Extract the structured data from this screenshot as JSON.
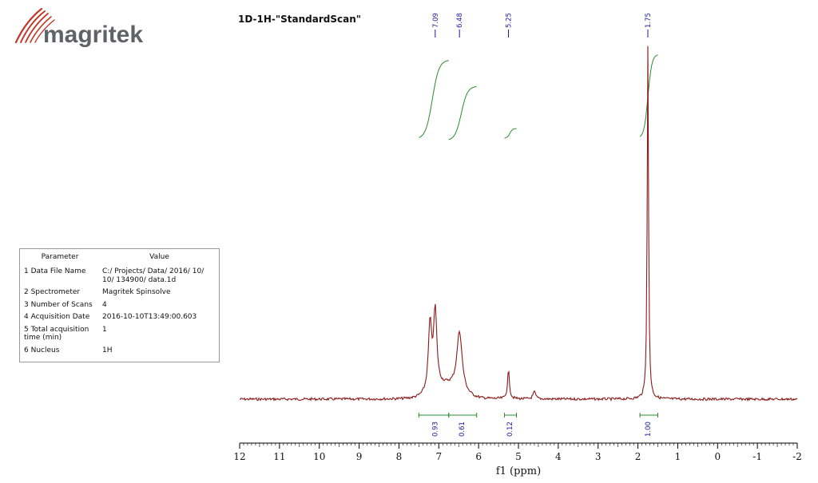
{
  "brand": {
    "logo_text": "magritek"
  },
  "parameters": {
    "header_param": "Parameter",
    "header_value": "Value",
    "rows": [
      {
        "name": "1 Data File Name",
        "value": "C:/ Projects/ Data/ 2016/ 10/ 10/ 134900/ data.1d"
      },
      {
        "name": "2 Spectrometer",
        "value": "Magritek Spinsolve"
      },
      {
        "name": "3 Number of Scans",
        "value": "4"
      },
      {
        "name": "4 Acquisition Date",
        "value": "2016-10-10T13:49:00.603"
      },
      {
        "name": "5 Total acquisition time (min)",
        "value": "1"
      },
      {
        "name": "6 Nucleus",
        "value": "1H"
      }
    ]
  },
  "chart_data": {
    "type": "line",
    "title": "1D-1H-\"StandardScan\"",
    "xlabel": "f1 (ppm)",
    "ylabel": "",
    "xlim": [
      12,
      -2
    ],
    "x_reversed": true,
    "xticks": [
      "12",
      "11",
      "10",
      "9",
      "8",
      "7",
      "6",
      "5",
      "4",
      "3",
      "2",
      "1",
      "0",
      "-1",
      "-2"
    ],
    "grid": false,
    "spectrum_color": "#8b1a1a",
    "integral_color": "#2e8b2e",
    "peak_label_color": "#1a1a9e",
    "peak_labels": [
      {
        "ppm": 7.09,
        "label": "7.09"
      },
      {
        "ppm": 6.48,
        "label": "6.48"
      },
      {
        "ppm": 5.25,
        "label": "5.25"
      },
      {
        "ppm": 1.75,
        "label": "1.75"
      }
    ],
    "peaks_relative_height": [
      {
        "ppm": 7.22,
        "height": 0.19,
        "width": 0.05
      },
      {
        "ppm": 7.09,
        "height": 0.22,
        "width": 0.05
      },
      {
        "ppm": 6.48,
        "height": 0.17,
        "width": 0.08
      },
      {
        "ppm": 5.25,
        "height": 0.08,
        "width": 0.03
      },
      {
        "ppm": 4.6,
        "height": 0.02,
        "width": 0.04
      },
      {
        "ppm": 1.75,
        "height": 1.0,
        "width": 0.02
      }
    ],
    "integrals": [
      {
        "from": 7.5,
        "to": 6.75,
        "value": "0.93",
        "label_ppm": 7.1
      },
      {
        "from": 6.75,
        "to": 6.05,
        "value": "0.61",
        "label_ppm": 6.42
      },
      {
        "from": 5.35,
        "to": 5.05,
        "value": "0.12",
        "label_ppm": 5.22
      },
      {
        "from": 1.95,
        "to": 1.5,
        "value": "1.00",
        "label_ppm": 1.75
      }
    ]
  }
}
